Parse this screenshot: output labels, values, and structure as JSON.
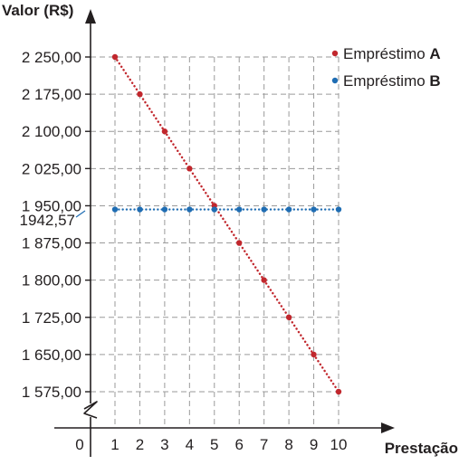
{
  "chart_data": {
    "type": "scatter",
    "ylabel": "Valor (R$)",
    "xlabel": "Prestação",
    "origin_label": "0",
    "x": [
      1,
      2,
      3,
      4,
      5,
      6,
      7,
      8,
      9,
      10
    ],
    "x_tick_labels": [
      "1",
      "2",
      "3",
      "4",
      "5",
      "6",
      "7",
      "8",
      "9",
      "10"
    ],
    "y_ticks": [
      2250,
      2175,
      2100,
      2025,
      1950,
      1875,
      1800,
      1725,
      1650,
      1575
    ],
    "y_tick_labels": [
      "2 250,00",
      "2 175,00",
      "2 100,00",
      "2 025,00",
      "1 950,00",
      "1 875,00",
      "1 800,00",
      "1 725,00",
      "1 650,00",
      "1 575,00"
    ],
    "annotation": {
      "label": "1942,57",
      "value": 1942.57
    },
    "ylim": [
      1575,
      2250
    ],
    "xlim": [
      1,
      10
    ],
    "y_axis_break": true,
    "grid": true,
    "legend_position": "top-right",
    "series": [
      {
        "legend_prefix": "Empréstimo ",
        "legend_strong": "A",
        "color": "#c1272d",
        "values": [
          2250,
          2175,
          2100,
          2025,
          1950,
          1875,
          1800,
          1725,
          1650,
          1575
        ]
      },
      {
        "legend_prefix": "Empréstimo ",
        "legend_strong": "B",
        "color": "#1f6db3",
        "values": [
          1942.57,
          1942.57,
          1942.57,
          1942.57,
          1942.57,
          1942.57,
          1942.57,
          1942.57,
          1942.57,
          1942.57
        ]
      }
    ]
  }
}
